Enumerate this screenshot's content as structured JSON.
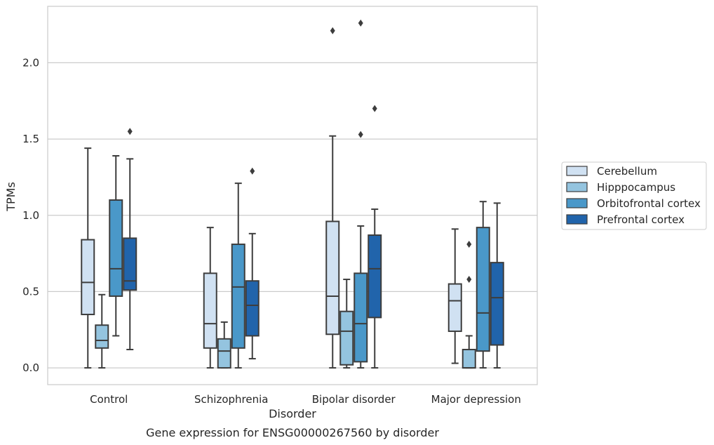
{
  "chart_data": {
    "type": "box",
    "caption": "Gene expression for ENSG00000267560 by disorder",
    "xlabel": "Disorder",
    "ylabel": "TPMs",
    "ylim": [
      -0.11,
      2.37
    ],
    "yticks": [
      0.0,
      0.5,
      1.0,
      1.5,
      2.0
    ],
    "ytick_labels": [
      "0.0",
      "0.5",
      "1.0",
      "1.5",
      "2.0"
    ],
    "grid": "horizontal",
    "legend_position": "right",
    "categories": [
      "Control",
      "Schizophrenia",
      "Bipolar disorder",
      "Major depression"
    ],
    "series": [
      {
        "name": "Cerebellum",
        "color": "#d0e1f2",
        "boxes": [
          {
            "whislo": 0.0,
            "q1": 0.35,
            "med": 0.56,
            "q3": 0.84,
            "whishi": 1.44,
            "fliers": []
          },
          {
            "whislo": 0.0,
            "q1": 0.13,
            "med": 0.29,
            "q3": 0.62,
            "whishi": 0.92,
            "fliers": []
          },
          {
            "whislo": 0.0,
            "q1": 0.22,
            "med": 0.47,
            "q3": 0.96,
            "whishi": 1.52,
            "fliers": [
              2.21
            ]
          },
          {
            "whislo": 0.03,
            "q1": 0.24,
            "med": 0.44,
            "q3": 0.55,
            "whishi": 0.91,
            "fliers": []
          }
        ]
      },
      {
        "name": "Hipppocampus",
        "color": "#94c4df",
        "boxes": [
          {
            "whislo": 0.0,
            "q1": 0.13,
            "med": 0.18,
            "q3": 0.28,
            "whishi": 0.48,
            "fliers": []
          },
          {
            "whislo": 0.0,
            "q1": 0.0,
            "med": 0.11,
            "q3": 0.19,
            "whishi": 0.3,
            "fliers": []
          },
          {
            "whislo": 0.0,
            "q1": 0.02,
            "med": 0.24,
            "q3": 0.37,
            "whishi": 0.58,
            "fliers": []
          },
          {
            "whislo": 0.0,
            "q1": 0.0,
            "med": 0.0,
            "q3": 0.12,
            "whishi": 0.21,
            "fliers": [
              0.58,
              0.81
            ]
          }
        ]
      },
      {
        "name": "Orbitofrontal cortex",
        "color": "#4a98c9",
        "boxes": [
          {
            "whislo": 0.21,
            "q1": 0.47,
            "med": 0.65,
            "q3": 1.1,
            "whishi": 1.39,
            "fliers": []
          },
          {
            "whislo": 0.0,
            "q1": 0.13,
            "med": 0.53,
            "q3": 0.81,
            "whishi": 1.21,
            "fliers": []
          },
          {
            "whislo": 0.0,
            "q1": 0.04,
            "med": 0.29,
            "q3": 0.62,
            "whishi": 0.93,
            "fliers": [
              1.53,
              2.26
            ]
          },
          {
            "whislo": 0.0,
            "q1": 0.11,
            "med": 0.36,
            "q3": 0.92,
            "whishi": 1.09,
            "fliers": []
          }
        ]
      },
      {
        "name": "Prefrontal cortex",
        "color": "#2164ab",
        "boxes": [
          {
            "whislo": 0.12,
            "q1": 0.51,
            "med": 0.57,
            "q3": 0.85,
            "whishi": 1.37,
            "fliers": [
              1.55
            ]
          },
          {
            "whislo": 0.06,
            "q1": 0.21,
            "med": 0.41,
            "q3": 0.57,
            "whishi": 0.88,
            "fliers": [
              1.29
            ]
          },
          {
            "whislo": 0.0,
            "q1": 0.33,
            "med": 0.65,
            "q3": 0.87,
            "whishi": 1.04,
            "fliers": [
              1.7
            ]
          },
          {
            "whislo": 0.0,
            "q1": 0.15,
            "med": 0.46,
            "q3": 0.69,
            "whishi": 1.08,
            "fliers": []
          }
        ]
      }
    ]
  }
}
